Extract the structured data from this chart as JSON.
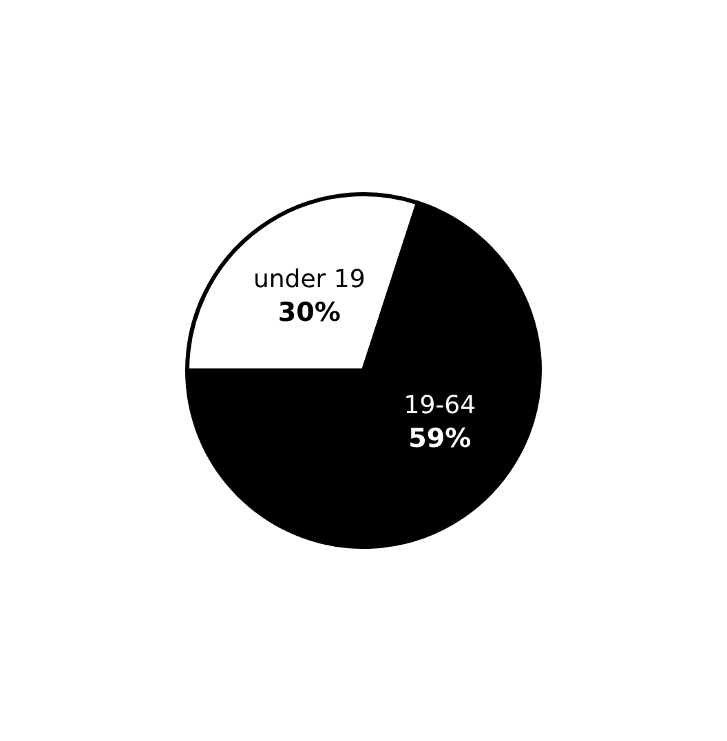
{
  "chart_data": {
    "type": "pie",
    "categories": [
      "under 19",
      "19-64",
      null
    ],
    "values": [
      30,
      59,
      11
    ],
    "colors": [
      "#ffffff",
      "#000000",
      "#000000"
    ],
    "value_labels": [
      "30%",
      "59%",
      null
    ],
    "legend": false
  }
}
